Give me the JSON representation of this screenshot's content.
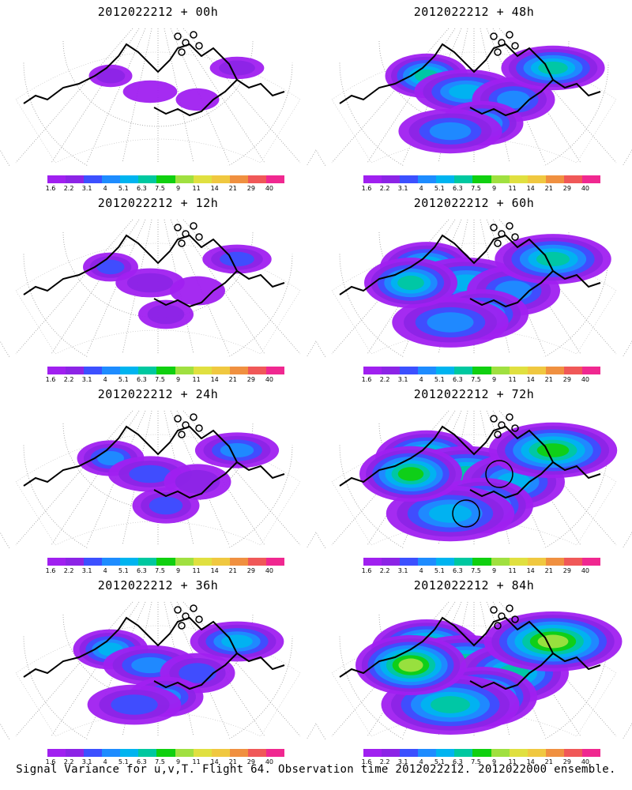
{
  "caption": "Signal Variance for u,v,T. Flight 64. Observation time 2012022212. 2012022000 ensemble.",
  "colorbar": {
    "labels": [
      "1.6",
      "2.2",
      "3.1",
      "4",
      "5.1",
      "6.3",
      "7.5",
      "9",
      "11",
      "14",
      "21",
      "29",
      "40"
    ],
    "colors": [
      "#a020f0",
      "#8c24e6",
      "#3c50ff",
      "#1e8cff",
      "#00b4f0",
      "#00c8a0",
      "#10d010",
      "#a0e040",
      "#e0e040",
      "#f0c840",
      "#f09040",
      "#f05858",
      "#f02890"
    ]
  },
  "panels": [
    {
      "title": "2012022212 + 00h",
      "spread": 0.15
    },
    {
      "title": "2012022212 + 48h",
      "spread": 0.65
    },
    {
      "title": "2012022212 + 12h",
      "spread": 0.3
    },
    {
      "title": "2012022212 + 60h",
      "spread": 0.78
    },
    {
      "title": "2012022212 + 24h",
      "spread": 0.45
    },
    {
      "title": "2012022212 + 72h",
      "spread": 0.9
    },
    {
      "title": "2012022212 + 36h",
      "spread": 0.55
    },
    {
      "title": "2012022212 + 84h",
      "spread": 1.0
    }
  ]
}
